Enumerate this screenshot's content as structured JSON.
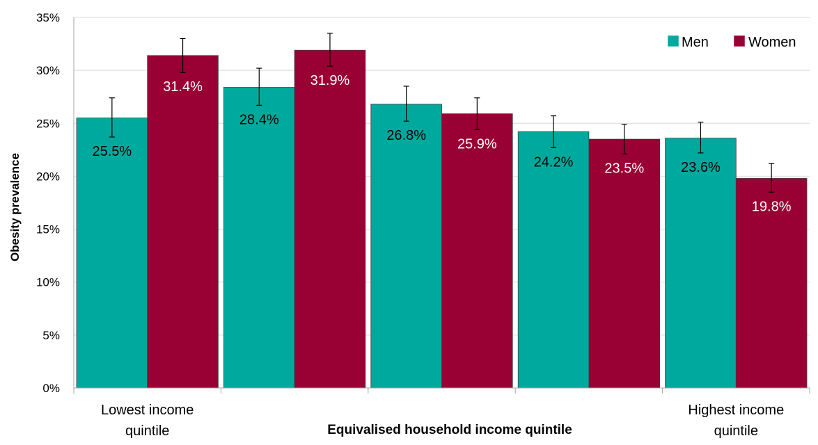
{
  "chart_data": {
    "type": "bar",
    "title": "",
    "xlabel": "Equivalised household income quintile",
    "ylabel": "Obesity prevalence",
    "ylim": [
      0,
      35
    ],
    "yticks": [
      "0%",
      "5%",
      "10%",
      "15%",
      "20%",
      "25%",
      "30%",
      "35%"
    ],
    "categories": [
      [
        "Lowest income",
        "quintile"
      ],
      [
        "",
        ""
      ],
      [
        "",
        ""
      ],
      [
        "",
        ""
      ],
      [
        "Highest income",
        "quintile"
      ]
    ],
    "series": [
      {
        "name": "Men",
        "color": "#00A99D",
        "label_color": "#000000",
        "values": [
          25.5,
          28.4,
          26.8,
          24.2,
          23.6
        ],
        "labels": [
          "25.5%",
          "28.4%",
          "26.8%",
          "24.2%",
          "23.6%"
        ],
        "ci_low": [
          23.7,
          26.7,
          25.2,
          22.7,
          22.2
        ],
        "ci_high": [
          27.4,
          30.2,
          28.5,
          25.7,
          25.1
        ]
      },
      {
        "name": "Women",
        "color": "#990033",
        "label_color": "#ffffff",
        "values": [
          31.4,
          31.9,
          25.9,
          23.5,
          19.8
        ],
        "labels": [
          "31.4%",
          "31.9%",
          "25.9%",
          "23.5%",
          "19.8%"
        ],
        "ci_low": [
          29.8,
          30.4,
          24.4,
          22.1,
          18.5
        ],
        "ci_high": [
          33.0,
          33.5,
          27.4,
          24.9,
          21.2
        ]
      }
    ],
    "grid": true,
    "error_bars": true,
    "legend_position": "top-right",
    "gridline_color": "#d9d9d9"
  }
}
